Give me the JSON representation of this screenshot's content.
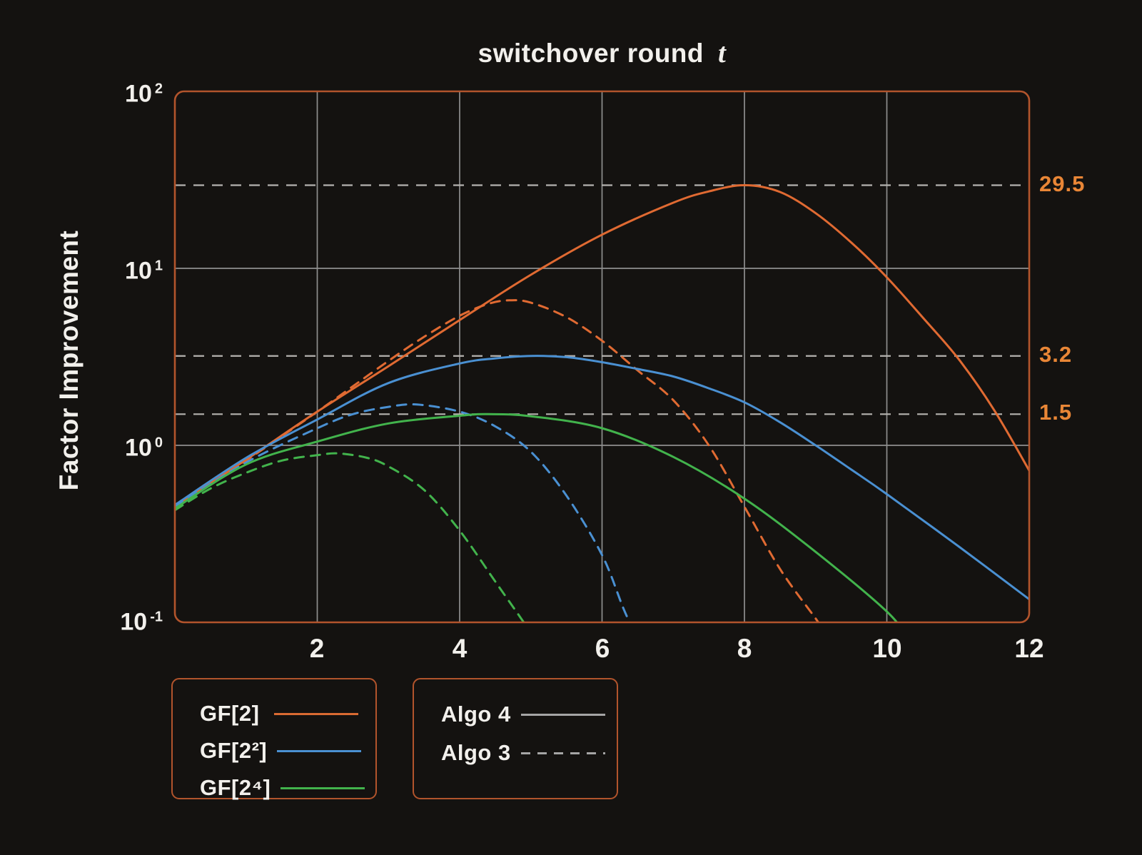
{
  "title": {
    "text": "switchover round",
    "variable": "t"
  },
  "axes": {
    "y_label": "Factor Improvement",
    "y_ticks": [
      {
        "base": "10",
        "exp": "2"
      },
      {
        "base": "10",
        "exp": "1"
      },
      {
        "base": "10",
        "exp": "0"
      },
      {
        "base": "10",
        "exp": "-1"
      }
    ],
    "x_ticks": [
      "2",
      "4",
      "6",
      "8",
      "10",
      "12"
    ]
  },
  "ref_labels": [
    "29.5",
    "3.2",
    "1.5"
  ],
  "legends": {
    "fields": [
      {
        "label": "GF[2]",
        "color": "#d96a32"
      },
      {
        "label": "GF[2²]",
        "color": "#4a90d2"
      },
      {
        "label": "GF[2⁴]",
        "color": "#42b34c"
      }
    ],
    "algos": [
      {
        "label": "Algo 4",
        "style": "solid"
      },
      {
        "label": "Algo 3",
        "style": "dashed"
      }
    ]
  },
  "colors": {
    "background": "#141210",
    "text": "#f2f0ec",
    "plot_border": "#b2542c",
    "grid": "#8f8f8f",
    "reference_line": "#b5b3af",
    "ref_label": "#e98636",
    "legend_line": "#a5a5a5",
    "orange": "#e06a32",
    "blue": "#4a90d2",
    "green": "#42b34c"
  },
  "chart_data": {
    "type": "line",
    "title": "switchover round t",
    "ylabel": "Factor Improvement",
    "xlabel": "",
    "xlim": [
      0,
      12
    ],
    "ylim": [
      0.1,
      100
    ],
    "yscale": "log",
    "grid": true,
    "x_gridlines": [
      2,
      4,
      6,
      8,
      10
    ],
    "y_gridlines": [
      10,
      1
    ],
    "x_tick_values": [
      2,
      4,
      6,
      8,
      10,
      12
    ],
    "reference_lines": [
      {
        "value": 29.5,
        "label": "29.5"
      },
      {
        "value": 3.2,
        "label": "3.2"
      },
      {
        "value": 1.5,
        "label": "1.5"
      }
    ],
    "legend_position": "bottom",
    "series": [
      {
        "name": "GF[2] Algo 4",
        "field": "GF[2]",
        "algo": "Algo 4",
        "color": "#e06a32",
        "dash": "solid",
        "points": [
          [
            0,
            0.45
          ],
          [
            1,
            0.83
          ],
          [
            2,
            1.55
          ],
          [
            3,
            2.8
          ],
          [
            4,
            5.1
          ],
          [
            5,
            9.2
          ],
          [
            6,
            15.5
          ],
          [
            7,
            23.5
          ],
          [
            7.5,
            27.2
          ],
          [
            8,
            29.5
          ],
          [
            8.5,
            27.0
          ],
          [
            9,
            20.5
          ],
          [
            9.5,
            14.0
          ],
          [
            10,
            8.9
          ],
          [
            10.5,
            5.3
          ],
          [
            11,
            3.1
          ],
          [
            11.5,
            1.6
          ],
          [
            12,
            0.72
          ]
        ]
      },
      {
        "name": "GF[2] Algo 3",
        "field": "GF[2]",
        "algo": "Algo 3",
        "color": "#e06a32",
        "dash": "dashed",
        "points": [
          [
            0,
            0.44
          ],
          [
            1,
            0.82
          ],
          [
            2,
            1.55
          ],
          [
            3,
            3.0
          ],
          [
            3.5,
            4.1
          ],
          [
            4,
            5.4
          ],
          [
            4.4,
            6.3
          ],
          [
            4.7,
            6.6
          ],
          [
            5,
            6.4
          ],
          [
            5.5,
            5.3
          ],
          [
            6,
            3.9
          ],
          [
            6.5,
            2.65
          ],
          [
            7,
            1.8
          ],
          [
            7.5,
            1.0
          ],
          [
            8,
            0.45
          ],
          [
            8.5,
            0.2
          ],
          [
            9,
            0.105
          ],
          [
            9.2,
            0.08
          ]
        ]
      },
      {
        "name": "GF[2²] Algo 4",
        "field": "GF[2²]",
        "algo": "Algo 4",
        "color": "#4a90d2",
        "dash": "solid",
        "points": [
          [
            0,
            0.46
          ],
          [
            1,
            0.85
          ],
          [
            2,
            1.4
          ],
          [
            3,
            2.25
          ],
          [
            4,
            2.9
          ],
          [
            4.5,
            3.1
          ],
          [
            5,
            3.2
          ],
          [
            5.5,
            3.15
          ],
          [
            6,
            2.95
          ],
          [
            6.5,
            2.7
          ],
          [
            7,
            2.45
          ],
          [
            7.5,
            2.1
          ],
          [
            8,
            1.75
          ],
          [
            8.5,
            1.35
          ],
          [
            9,
            1.0
          ],
          [
            9.5,
            0.73
          ],
          [
            10,
            0.53
          ],
          [
            11,
            0.27
          ],
          [
            12,
            0.135
          ]
        ]
      },
      {
        "name": "GF[2²] Algo 3",
        "field": "GF[2²]",
        "algo": "Algo 3",
        "color": "#4a90d2",
        "dash": "dashed",
        "points": [
          [
            0,
            0.45
          ],
          [
            1,
            0.8
          ],
          [
            2,
            1.25
          ],
          [
            2.5,
            1.5
          ],
          [
            3,
            1.65
          ],
          [
            3.4,
            1.7
          ],
          [
            4,
            1.55
          ],
          [
            4.5,
            1.28
          ],
          [
            5,
            0.92
          ],
          [
            5.5,
            0.52
          ],
          [
            6,
            0.24
          ],
          [
            6.3,
            0.12
          ],
          [
            6.5,
            0.08
          ]
        ]
      },
      {
        "name": "GF[2⁴] Algo 4",
        "field": "GF[2⁴]",
        "algo": "Algo 4",
        "color": "#42b34c",
        "dash": "solid",
        "points": [
          [
            0,
            0.44
          ],
          [
            1,
            0.78
          ],
          [
            2,
            1.05
          ],
          [
            3,
            1.33
          ],
          [
            4,
            1.47
          ],
          [
            4.4,
            1.5
          ],
          [
            5,
            1.46
          ],
          [
            6,
            1.25
          ],
          [
            7,
            0.86
          ],
          [
            8,
            0.5
          ],
          [
            9,
            0.25
          ],
          [
            10,
            0.115
          ],
          [
            10.3,
            0.08
          ]
        ]
      },
      {
        "name": "GF[2⁴] Algo 3",
        "field": "GF[2⁴]",
        "algo": "Algo 3",
        "color": "#42b34c",
        "dash": "dashed",
        "points": [
          [
            0,
            0.43
          ],
          [
            0.5,
            0.57
          ],
          [
            1,
            0.7
          ],
          [
            1.5,
            0.82
          ],
          [
            2,
            0.88
          ],
          [
            2.3,
            0.9
          ],
          [
            2.7,
            0.85
          ],
          [
            3,
            0.76
          ],
          [
            3.5,
            0.56
          ],
          [
            4,
            0.33
          ],
          [
            4.5,
            0.17
          ],
          [
            4.9,
            0.1
          ],
          [
            5.05,
            0.08
          ]
        ]
      }
    ]
  }
}
